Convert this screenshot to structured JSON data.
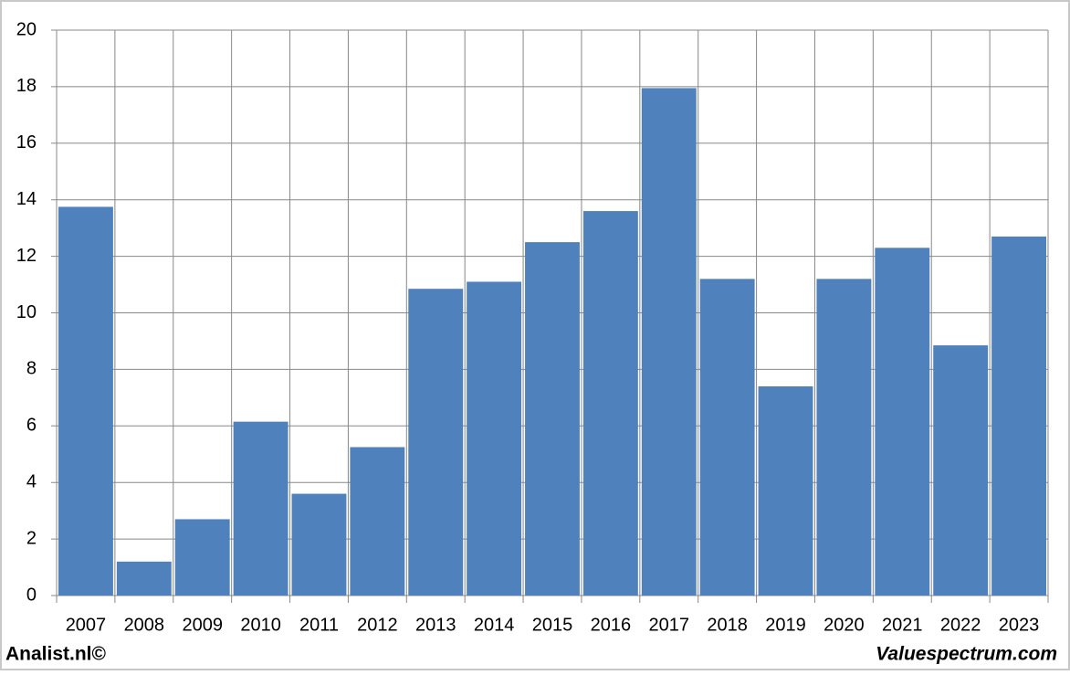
{
  "chart_data": {
    "type": "bar",
    "categories": [
      "2007",
      "2008",
      "2009",
      "2010",
      "2011",
      "2012",
      "2013",
      "2014",
      "2015",
      "2016",
      "2017",
      "2018",
      "2019",
      "2020",
      "2021",
      "2022",
      "2023"
    ],
    "values": [
      13.75,
      1.2,
      2.7,
      6.15,
      3.6,
      5.25,
      10.85,
      11.1,
      12.5,
      13.6,
      17.95,
      11.2,
      7.4,
      11.2,
      12.3,
      8.85,
      12.7
    ],
    "color": "#4f81bd",
    "ylim": [
      0,
      20
    ],
    "yticks": [
      0,
      2,
      4,
      6,
      8,
      10,
      12,
      14,
      16,
      18,
      20
    ],
    "grid": true
  },
  "footer": {
    "left": "Analist.nl©",
    "right": "Valuespectrum.com"
  }
}
